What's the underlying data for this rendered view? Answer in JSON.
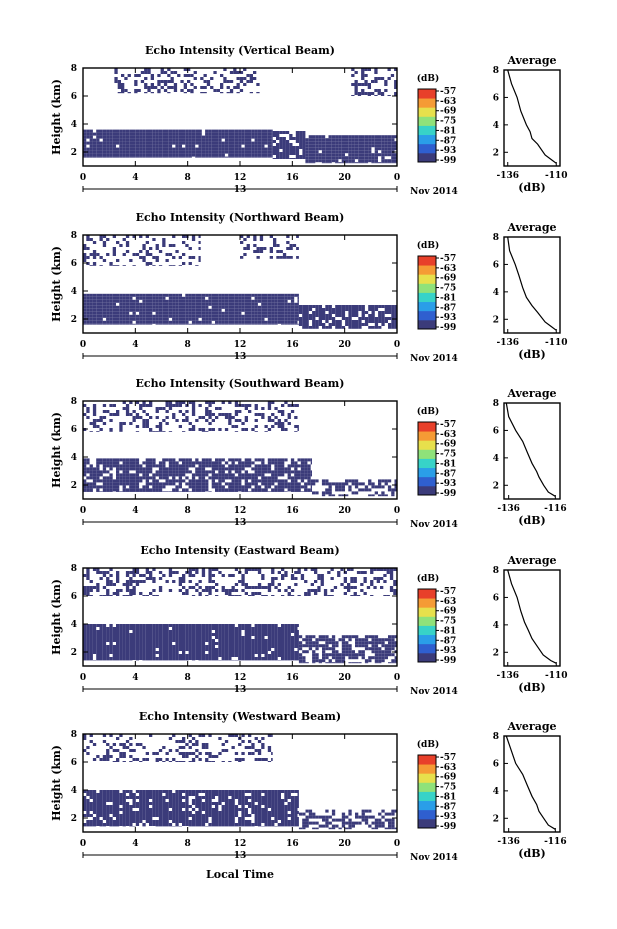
{
  "shared": {
    "x_ticks": [
      "0",
      "4",
      "8",
      "12",
      "16",
      "20",
      "0"
    ],
    "date_label": "13",
    "month_label": "Nov 2014",
    "y_ticks": [
      "2",
      "4",
      "6",
      "8"
    ],
    "ylabel": "Height (km)",
    "xlabel": "Local Time",
    "cbar_unit": "(dB)",
    "cbar_ticks": [
      "-57",
      "-63",
      "-69",
      "-75",
      "-81",
      "-87",
      "-93",
      "-99"
    ],
    "avg_title": "Average",
    "avg_xlabel": "(dB)",
    "colors": {
      "echo_fill": "#3b3b7a",
      "colorbar": [
        "#3b3b7a",
        "#2f5fcf",
        "#2a9ee8",
        "#37d3c8",
        "#8fe27a",
        "#e7e04c",
        "#f59b35",
        "#e8402a"
      ]
    }
  },
  "chart_data": [
    {
      "type": "heatmap",
      "title": "Echo Intensity (Vertical Beam)",
      "xlim": [
        0,
        24
      ],
      "ylim": [
        1,
        8
      ],
      "echo_bands": [
        {
          "x": [
            0,
            14.5
          ],
          "y": [
            1.6,
            3.6
          ],
          "density": 0.97
        },
        {
          "x": [
            14.5,
            17
          ],
          "y": [
            1.5,
            3.5
          ],
          "density": 0.85
        },
        {
          "x": [
            17,
            24
          ],
          "y": [
            1.2,
            3.2
          ],
          "density": 0.92
        },
        {
          "x": [
            2.4,
            13.5
          ],
          "y": [
            6.2,
            8.0
          ],
          "density": 0.35
        },
        {
          "x": [
            20.5,
            24
          ],
          "y": [
            6.0,
            8.0
          ],
          "density": 0.45
        }
      ],
      "avg_profile": {
        "xticks": [
          "-136",
          "-110"
        ],
        "xlim": [
          -138,
          -108
        ],
        "points": [
          [
            -110,
            1.2
          ],
          [
            -112,
            1.4
          ],
          [
            -116,
            1.8
          ],
          [
            -120,
            2.6
          ],
          [
            -123,
            3.0
          ],
          [
            -124,
            3.5
          ],
          [
            -126,
            4.0
          ],
          [
            -129,
            5.0
          ],
          [
            -131,
            6.0
          ],
          [
            -134,
            7.0
          ],
          [
            -136,
            8.0
          ]
        ]
      }
    },
    {
      "type": "heatmap",
      "title": "Echo Intensity (Northward Beam)",
      "xlim": [
        0,
        24
      ],
      "ylim": [
        1,
        8
      ],
      "echo_bands": [
        {
          "x": [
            0,
            16.5
          ],
          "y": [
            1.6,
            3.8
          ],
          "density": 0.96
        },
        {
          "x": [
            16.5,
            24
          ],
          "y": [
            1.3,
            3.0
          ],
          "density": 0.85
        },
        {
          "x": [
            0,
            9
          ],
          "y": [
            5.8,
            8.0
          ],
          "density": 0.3
        },
        {
          "x": [
            12,
            16.5
          ],
          "y": [
            6.3,
            8.0
          ],
          "density": 0.35
        }
      ],
      "avg_profile": {
        "xticks": [
          "-136",
          "-110"
        ],
        "xlim": [
          -138,
          -108
        ],
        "points": [
          [
            -110,
            1.2
          ],
          [
            -113,
            1.5
          ],
          [
            -116,
            1.8
          ],
          [
            -120,
            2.5
          ],
          [
            -123,
            3.0
          ],
          [
            -126,
            3.6
          ],
          [
            -128,
            4.3
          ],
          [
            -130,
            5.2
          ],
          [
            -132,
            6.0
          ],
          [
            -135,
            7.0
          ],
          [
            -136,
            8.0
          ]
        ]
      }
    },
    {
      "type": "heatmap",
      "title": "Echo Intensity (Southward Beam)",
      "xlim": [
        0,
        24
      ],
      "ylim": [
        1,
        8
      ],
      "echo_bands": [
        {
          "x": [
            0,
            17.5
          ],
          "y": [
            1.5,
            3.9
          ],
          "density": 0.82
        },
        {
          "x": [
            17.5,
            24
          ],
          "y": [
            1.2,
            2.4
          ],
          "density": 0.55
        },
        {
          "x": [
            0,
            16.5
          ],
          "y": [
            5.8,
            8.0
          ],
          "density": 0.32
        }
      ],
      "avg_profile": {
        "xticks": [
          "-136",
          "-116"
        ],
        "xlim": [
          -138,
          -114
        ],
        "points": [
          [
            -116,
            1.2
          ],
          [
            -119,
            1.5
          ],
          [
            -121,
            2.0
          ],
          [
            -123,
            2.6
          ],
          [
            -124,
            3.0
          ],
          [
            -126,
            3.6
          ],
          [
            -128,
            4.4
          ],
          [
            -130,
            5.2
          ],
          [
            -133,
            6.0
          ],
          [
            -136,
            7.0
          ],
          [
            -137,
            8.0
          ]
        ]
      }
    },
    {
      "type": "heatmap",
      "title": "Echo Intensity (Eastward Beam)",
      "xlim": [
        0,
        24
      ],
      "ylim": [
        1,
        8
      ],
      "echo_bands": [
        {
          "x": [
            0,
            16.5
          ],
          "y": [
            1.4,
            4.0
          ],
          "density": 0.96
        },
        {
          "x": [
            16.5,
            24
          ],
          "y": [
            1.2,
            3.2
          ],
          "density": 0.72
        },
        {
          "x": [
            0,
            24
          ],
          "y": [
            6.0,
            8.0
          ],
          "density": 0.33
        }
      ],
      "avg_profile": {
        "xticks": [
          "-136",
          "-110"
        ],
        "xlim": [
          -138,
          -108
        ],
        "points": [
          [
            -110,
            1.2
          ],
          [
            -113,
            1.4
          ],
          [
            -117,
            1.8
          ],
          [
            -120,
            2.4
          ],
          [
            -123,
            3.0
          ],
          [
            -125,
            3.6
          ],
          [
            -127,
            4.2
          ],
          [
            -129,
            5.0
          ],
          [
            -131,
            6.0
          ],
          [
            -134,
            7.0
          ],
          [
            -136,
            8.0
          ]
        ]
      }
    },
    {
      "type": "heatmap",
      "title": "Echo Intensity (Westward Beam)",
      "xlim": [
        0,
        24
      ],
      "ylim": [
        1,
        8
      ],
      "echo_bands": [
        {
          "x": [
            0,
            16.5
          ],
          "y": [
            1.4,
            4.0
          ],
          "density": 0.85
        },
        {
          "x": [
            16.5,
            24
          ],
          "y": [
            1.2,
            2.6
          ],
          "density": 0.5
        },
        {
          "x": [
            0,
            14.5
          ],
          "y": [
            6.0,
            8.0
          ],
          "density": 0.3
        }
      ],
      "avg_profile": {
        "xticks": [
          "-136",
          "-116"
        ],
        "xlim": [
          -138,
          -114
        ],
        "points": [
          [
            -116,
            1.2
          ],
          [
            -119,
            1.5
          ],
          [
            -121,
            2.0
          ],
          [
            -123,
            2.5
          ],
          [
            -124,
            3.0
          ],
          [
            -126,
            3.6
          ],
          [
            -128,
            4.4
          ],
          [
            -130,
            5.2
          ],
          [
            -133,
            6.0
          ],
          [
            -135,
            7.0
          ],
          [
            -137,
            8.0
          ]
        ]
      }
    }
  ]
}
